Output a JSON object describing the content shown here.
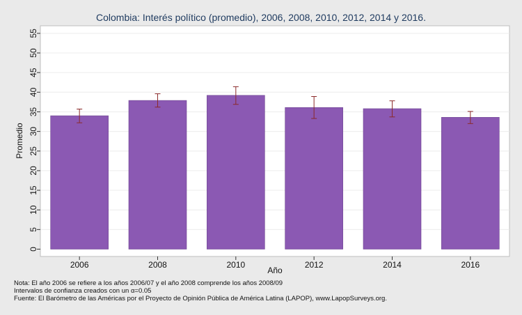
{
  "chart_data": {
    "type": "bar",
    "title": "Colombia: Interés político (promedio), 2006, 2008, 2010, 2012, 2014 y 2016.",
    "xlabel": "Año",
    "ylabel": "Promedio",
    "categories": [
      "2006",
      "2008",
      "2010",
      "2012",
      "2014",
      "2016"
    ],
    "values": [
      34.0,
      37.9,
      39.2,
      36.1,
      35.8,
      33.6
    ],
    "ci_low": [
      32.2,
      36.2,
      36.9,
      33.3,
      33.7,
      32.0
    ],
    "ci_high": [
      35.7,
      39.6,
      41.4,
      38.9,
      37.8,
      35.1
    ],
    "ylim": [
      0,
      57
    ],
    "yticks": [
      0,
      5,
      10,
      15,
      20,
      25,
      30,
      35,
      40,
      45,
      50,
      55
    ],
    "bar_color": "#8b59b3",
    "errorbar_color": "#8b2a2a",
    "grid": true,
    "legend": "none"
  },
  "notes": {
    "line1": "Nota: El año 2006 se refiere a los años 2006/07 y el año 2008 comprende los años 2008/09",
    "line2": "Intervalos de confianza creados con un α=0.05",
    "line3": "Fuente: El Barómetro de las Américas por el Proyecto de Opinión Pública de América Latina (LAPOP), www.LapopSurveys.org."
  }
}
